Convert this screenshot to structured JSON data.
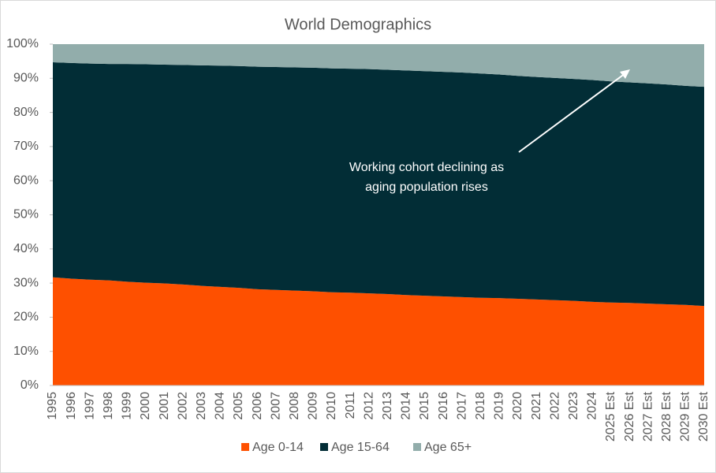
{
  "chart_data": {
    "type": "stacked_area",
    "title": "World Demographics",
    "categories": [
      "1995",
      "1996",
      "1997",
      "1998",
      "1999",
      "2000",
      "2001",
      "2002",
      "2003",
      "2004",
      "2005",
      "2006",
      "2007",
      "2008",
      "2009",
      "2010",
      "2011",
      "2012",
      "2013",
      "2014",
      "2015",
      "2016",
      "2017",
      "2018",
      "2019",
      "2020",
      "2021",
      "2022",
      "2023",
      "2024",
      "2025 Est",
      "2026 Est",
      "2027 Est",
      "2028 Est",
      "2029 Est",
      "2030 Est"
    ],
    "series": [
      {
        "name": "Age 0-14",
        "color": "#fe5000",
        "values": [
          31.7,
          31.3,
          31.0,
          30.8,
          30.4,
          30.1,
          29.9,
          29.6,
          29.2,
          28.9,
          28.6,
          28.2,
          28.0,
          27.8,
          27.6,
          27.3,
          27.2,
          27.0,
          26.8,
          26.5,
          26.3,
          26.1,
          25.9,
          25.7,
          25.6,
          25.4,
          25.2,
          25.0,
          24.8,
          24.5,
          24.3,
          24.2,
          24.0,
          23.8,
          23.6,
          23.3
        ]
      },
      {
        "name": "Age 15-64",
        "color": "#022d36",
        "values": [
          63.0,
          63.2,
          63.3,
          63.4,
          63.8,
          64.0,
          64.1,
          64.3,
          64.6,
          64.8,
          65.0,
          65.2,
          65.3,
          65.4,
          65.5,
          65.6,
          65.6,
          65.7,
          65.7,
          65.8,
          65.8,
          65.8,
          65.8,
          65.7,
          65.5,
          65.3,
          65.2,
          65.1,
          65.0,
          65.0,
          64.8,
          64.6,
          64.5,
          64.4,
          64.2,
          64.2
        ]
      },
      {
        "name": "Age 65+",
        "color": "#92adab",
        "values": [
          5.3,
          5.5,
          5.7,
          5.8,
          5.8,
          5.9,
          6.0,
          6.1,
          6.2,
          6.3,
          6.4,
          6.6,
          6.7,
          6.8,
          6.9,
          7.1,
          7.2,
          7.3,
          7.5,
          7.7,
          7.9,
          8.1,
          8.3,
          8.6,
          8.9,
          9.3,
          9.6,
          9.9,
          10.2,
          10.5,
          10.9,
          11.2,
          11.5,
          11.8,
          12.2,
          12.5
        ]
      }
    ],
    "ylim": [
      0,
      100
    ],
    "yticks": [
      {
        "value": 0,
        "label": "0%"
      },
      {
        "value": 10,
        "label": "10%"
      },
      {
        "value": 20,
        "label": "20%"
      },
      {
        "value": 30,
        "label": "30%"
      },
      {
        "value": 40,
        "label": "40%"
      },
      {
        "value": 50,
        "label": "50%"
      },
      {
        "value": 60,
        "label": "60%"
      },
      {
        "value": 70,
        "label": "70%"
      },
      {
        "value": 80,
        "label": "80%"
      },
      {
        "value": 90,
        "label": "90%"
      },
      {
        "value": 100,
        "label": "100%"
      }
    ],
    "annotation": [
      "Working cohort declining as",
      "aging population rises"
    ],
    "legend": "bottom"
  }
}
